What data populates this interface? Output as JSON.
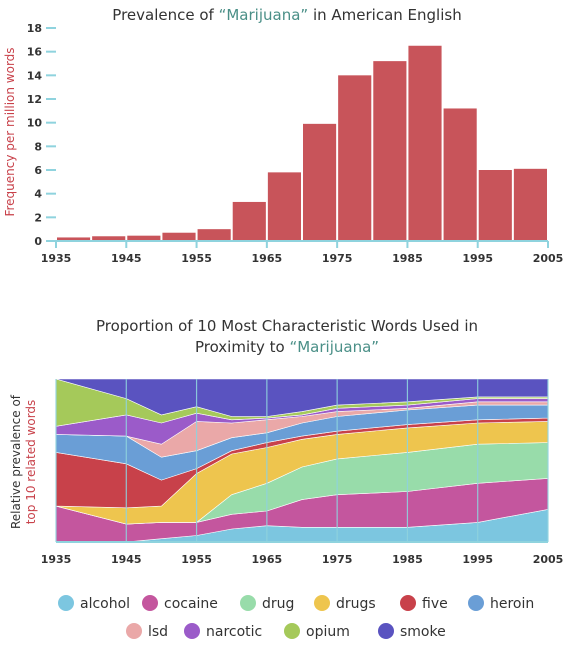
{
  "chart_data": [
    {
      "type": "bar",
      "title_parts": [
        "Prevalence of ",
        "“Marijuana”",
        " in American English"
      ],
      "xlabel": "",
      "ylabel": "Frequency per million words",
      "ylim": [
        0,
        18
      ],
      "yticks": [
        0,
        2,
        4,
        6,
        8,
        10,
        12,
        14,
        16,
        18
      ],
      "xticks": [
        1935,
        1945,
        1955,
        1965,
        1975,
        1985,
        1995,
        2005
      ],
      "xlim": [
        1935,
        2005
      ],
      "bar_width_years": 5,
      "bar_color": "#c8545a",
      "x": [
        1935,
        1940,
        1945,
        1950,
        1955,
        1960,
        1965,
        1970,
        1975,
        1980,
        1985,
        1990,
        1995,
        2000
      ],
      "values": [
        0.3,
        0.4,
        0.45,
        0.7,
        1.0,
        3.3,
        5.8,
        9.9,
        14.0,
        15.2,
        16.5,
        11.2,
        6.0,
        6.1
      ]
    },
    {
      "type": "area",
      "stacked_normalized": true,
      "title_lines": [
        [
          "Proportion of 10 Most Characteristic Words Used in"
        ],
        [
          "Proximity to ",
          "“Marijuana”"
        ]
      ],
      "ylabel_lines": [
        "Relative prevalence of",
        "top 10 related words"
      ],
      "xticks": [
        1935,
        1945,
        1955,
        1965,
        1975,
        1985,
        1995,
        2005
      ],
      "xlim": [
        1935,
        2005
      ],
      "legend_position": "bottom",
      "x": [
        1935,
        1945,
        1950,
        1955,
        1960,
        1965,
        1970,
        1975,
        1985,
        1995,
        2005
      ],
      "series": [
        {
          "name": "alcohol",
          "color": "#7cc6e0",
          "values": [
            0.0,
            0.0,
            0.02,
            0.04,
            0.08,
            0.1,
            0.09,
            0.09,
            0.09,
            0.12,
            0.2
          ]
        },
        {
          "name": "cocaine",
          "color": "#c4569e",
          "values": [
            0.22,
            0.11,
            0.1,
            0.08,
            0.09,
            0.09,
            0.17,
            0.2,
            0.22,
            0.24,
            0.19
          ]
        },
        {
          "name": "drug",
          "color": "#98dcaa",
          "values": [
            0.0,
            0.0,
            0.0,
            0.0,
            0.12,
            0.17,
            0.2,
            0.22,
            0.24,
            0.24,
            0.22
          ]
        },
        {
          "name": "drugs",
          "color": "#eec54e",
          "values": [
            0.0,
            0.1,
            0.1,
            0.3,
            0.25,
            0.22,
            0.17,
            0.15,
            0.15,
            0.13,
            0.13
          ]
        },
        {
          "name": "five",
          "color": "#c8414a",
          "values": [
            0.33,
            0.27,
            0.16,
            0.03,
            0.02,
            0.03,
            0.02,
            0.02,
            0.02,
            0.02,
            0.02
          ]
        },
        {
          "name": "heroin",
          "color": "#6a9ed6",
          "values": [
            0.11,
            0.17,
            0.14,
            0.11,
            0.08,
            0.06,
            0.08,
            0.09,
            0.09,
            0.09,
            0.08
          ]
        },
        {
          "name": "lsd",
          "color": "#eaa8a8",
          "values": [
            0.0,
            0.0,
            0.08,
            0.18,
            0.09,
            0.08,
            0.04,
            0.03,
            0.01,
            0.02,
            0.02
          ]
        },
        {
          "name": "narcotic",
          "color": "#9b5bc9",
          "values": [
            0.05,
            0.13,
            0.13,
            0.05,
            0.02,
            0.01,
            0.01,
            0.02,
            0.02,
            0.02,
            0.02
          ]
        },
        {
          "name": "opium",
          "color": "#a5c95a",
          "values": [
            0.29,
            0.1,
            0.05,
            0.04,
            0.02,
            0.01,
            0.02,
            0.02,
            0.02,
            0.01,
            0.01
          ]
        },
        {
          "name": "smoke",
          "color": "#5a53c0",
          "values": [
            0.0,
            0.12,
            0.22,
            0.17,
            0.23,
            0.23,
            0.2,
            0.16,
            0.14,
            0.11,
            0.11
          ]
        }
      ],
      "legend_rows": [
        [
          "alcohol",
          "cocaine",
          "drug",
          "drugs",
          "five",
          "heroin"
        ],
        [
          "lsd",
          "narcotic",
          "opium",
          "smoke"
        ]
      ]
    }
  ]
}
